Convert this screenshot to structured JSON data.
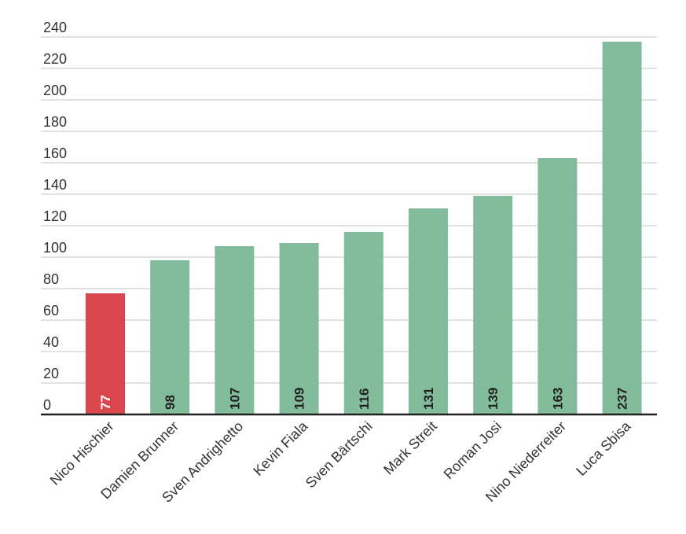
{
  "chart_data": {
    "type": "bar",
    "title": "",
    "xlabel": "",
    "ylabel": "",
    "categories": [
      "Nico Hischier",
      "Damien Brunner",
      "Sven Andrighetto",
      "Kevin Fiala",
      "Sven Bärtschi",
      "Mark Streit",
      "Roman Josi",
      "Nino Niederreiter",
      "Luca Sbisa"
    ],
    "values": [
      77,
      98,
      107,
      109,
      116,
      131,
      139,
      163,
      237
    ],
    "data_labels": [
      "77",
      "98",
      "107",
      "109",
      "116",
      "131",
      "139",
      "163",
      "237"
    ],
    "highlight_index": 0,
    "ylim": [
      0,
      240
    ],
    "yticks": [
      0,
      20,
      40,
      60,
      80,
      100,
      120,
      140,
      160,
      180,
      200,
      220,
      240
    ],
    "ytick_labels": [
      "0",
      "20",
      "40",
      "60",
      "80",
      "100",
      "120",
      "140",
      "160",
      "180",
      "200",
      "220",
      "240"
    ],
    "grid": true,
    "colors": {
      "bar": "#82bc9b",
      "highlight": "#d9464e",
      "grid": "#cfcfcf",
      "axis": "#222222",
      "data_label_default": "#222222",
      "data_label_highlight": "#ffffff"
    }
  }
}
